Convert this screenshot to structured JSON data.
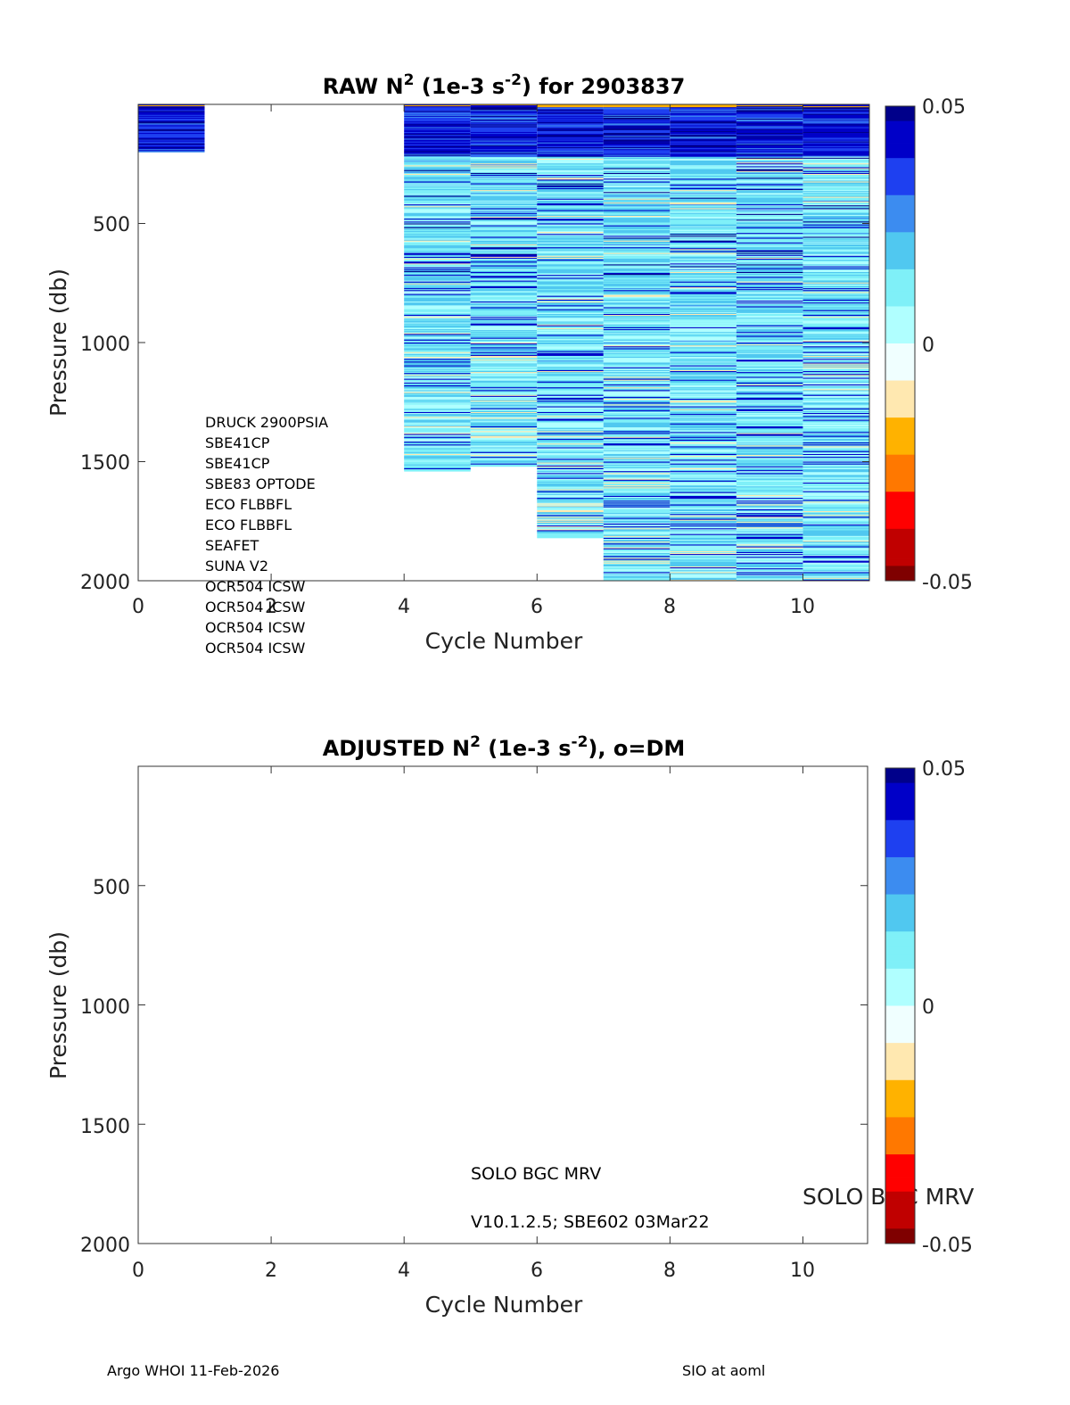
{
  "colors": {
    "ramp": [
      "#7f0000",
      "#c00000",
      "#ff0000",
      "#ff7800",
      "#ffb200",
      "#ffe8b0",
      "#f0ffff",
      "#b0ffff",
      "#7ff0f8",
      "#50c8f0",
      "#3c8cf0",
      "#1e40f0",
      "#0000c8",
      "#00008a"
    ]
  },
  "chart_data": [
    {
      "type": "heatmap",
      "title": {
        "main": "RAW N",
        "sup1": "2",
        "mid": " (1e-3 s",
        "sup2": "-2",
        "end": ") for 2903837"
      },
      "xlabel": "Cycle Number",
      "ylabel": "Pressure (db)",
      "xlim": [
        0,
        11
      ],
      "ylim": [
        2000,
        0
      ],
      "xticks": [
        "0",
        "2",
        "4",
        "6",
        "8",
        "10"
      ],
      "yticks": [
        "500",
        "1000",
        "1500",
        "2000"
      ],
      "colorbar": {
        "ticks": [
          "0.05",
          "0",
          "-0.05"
        ],
        "range": [
          -0.05,
          0.05
        ]
      },
      "profiles": [
        {
          "cycle_start": 0,
          "cycle_end": 1,
          "max_pressure": 200
        },
        {
          "cycle_start": 4,
          "cycle_end": 5,
          "max_pressure": 1540
        },
        {
          "cycle_start": 5,
          "cycle_end": 6,
          "max_pressure": 1520
        },
        {
          "cycle_start": 6,
          "cycle_end": 7,
          "max_pressure": 1820
        },
        {
          "cycle_start": 7,
          "cycle_end": 8,
          "max_pressure": 2000
        },
        {
          "cycle_start": 8,
          "cycle_end": 9,
          "max_pressure": 2000
        },
        {
          "cycle_start": 9,
          "cycle_end": 10,
          "max_pressure": 2000
        },
        {
          "cycle_start": 10,
          "cycle_end": 11,
          "max_pressure": 2000
        }
      ],
      "sensor_list": [
        "DRUCK 2900PSIA",
        "SBE41CP",
        "SBE41CP",
        "SBE83 OPTODE",
        "ECO FLBBFL",
        "ECO FLBBFL",
        "SEAFET",
        "SUNA V2",
        "OCR504 ICSW",
        "OCR504 ICSW",
        "OCR504 ICSW",
        "OCR504 ICSW"
      ]
    },
    {
      "type": "heatmap",
      "title": {
        "main": "ADJUSTED N",
        "sup1": "2",
        "mid": " (1e-3 s",
        "sup2": "-2",
        "end": "), o=DM"
      },
      "xlabel": "Cycle Number",
      "ylabel": "Pressure (db)",
      "xlim": [
        0,
        11
      ],
      "ylim": [
        2000,
        0
      ],
      "xticks": [
        "0",
        "2",
        "4",
        "6",
        "8",
        "10"
      ],
      "yticks": [
        "500",
        "1000",
        "1500",
        "2000"
      ],
      "colorbar": {
        "ticks": [
          "0.05",
          "0",
          "-0.05"
        ],
        "range": [
          -0.05,
          0.05
        ]
      },
      "profiles": [],
      "notes": {
        "model": "SOLO BGC MRV",
        "firmware": "V10.1.2.5; SBE602 03Mar22",
        "overlay": "SOLO BGC MRV"
      }
    }
  ],
  "footer": {
    "left": "Argo WHOI 11-Feb-2026",
    "right": "SIO at aoml"
  }
}
